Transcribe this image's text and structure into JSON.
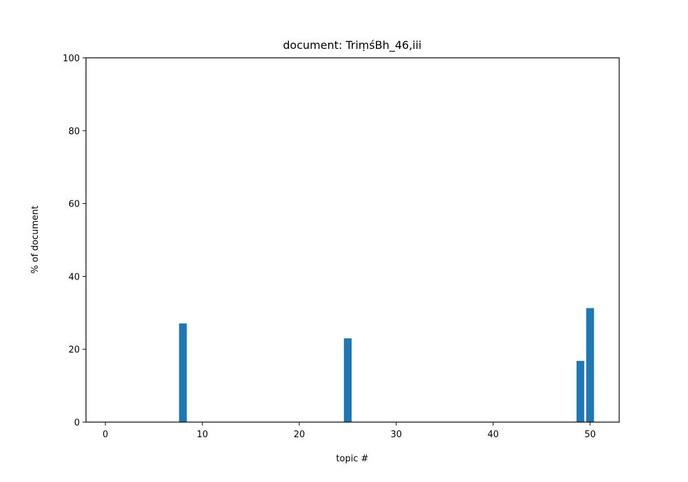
{
  "chart_data": {
    "type": "bar",
    "title": "document: TriṃśBh_46,iii",
    "xlabel": "topic #",
    "ylabel": "% of document",
    "x": [
      0,
      1,
      2,
      3,
      4,
      5,
      6,
      7,
      8,
      9,
      10,
      11,
      12,
      13,
      14,
      15,
      16,
      17,
      18,
      19,
      20,
      21,
      22,
      23,
      24,
      25,
      26,
      27,
      28,
      29,
      30,
      31,
      32,
      33,
      34,
      35,
      36,
      37,
      38,
      39,
      40,
      41,
      42,
      43,
      44,
      45,
      46,
      47,
      48,
      49,
      50
    ],
    "values": [
      0,
      0,
      0,
      0,
      0,
      0,
      0,
      0,
      27.1,
      0,
      0,
      0,
      0,
      0,
      0,
      0,
      0,
      0,
      0,
      0,
      0,
      0,
      0,
      0,
      0,
      23.0,
      0,
      0,
      0,
      0,
      0,
      0,
      0,
      0,
      0,
      0,
      0,
      0,
      0,
      0,
      0,
      0,
      0,
      0,
      0,
      0,
      0,
      0,
      0,
      16.8,
      31.3
    ],
    "xlim": [
      -2,
      53
    ],
    "ylim": [
      0,
      100
    ],
    "xticks": [
      0,
      10,
      20,
      30,
      40,
      50
    ],
    "yticks": [
      0,
      20,
      40,
      60,
      80,
      100
    ],
    "bar_color": "#1f77b4",
    "grid": false,
    "legend": "none"
  }
}
